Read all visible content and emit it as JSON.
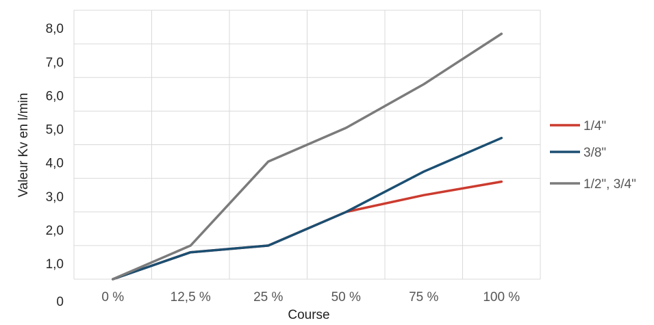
{
  "chart_data": {
    "type": "line",
    "title": "",
    "xlabel": "Course",
    "ylabel": "Valeur Kv en l/min",
    "categories": [
      "0 %",
      "12,5 %",
      "25 %",
      "50 %",
      "75 %",
      "100 %"
    ],
    "y_tick_labels": [
      "0",
      "1,0",
      "2,0",
      "3,0",
      "4,0",
      "5,0",
      "6,0",
      "7,0",
      "8,0"
    ],
    "ylim": [
      0,
      8
    ],
    "grid": true,
    "legend_position": "right",
    "series": [
      {
        "name": "1/4\"",
        "color": "#cc3b2f",
        "values": [
          0,
          0.8,
          1.0,
          2.0,
          2.5,
          2.9
        ]
      },
      {
        "name": "3/8\"",
        "color": "#1b4f72",
        "values": [
          0,
          0.8,
          1.0,
          2.0,
          3.2,
          4.2
        ]
      },
      {
        "name": "1/2\", 3/4\"",
        "color": "#7b7b7b",
        "values": [
          0,
          1.0,
          3.5,
          4.5,
          5.8,
          7.3
        ]
      }
    ]
  }
}
